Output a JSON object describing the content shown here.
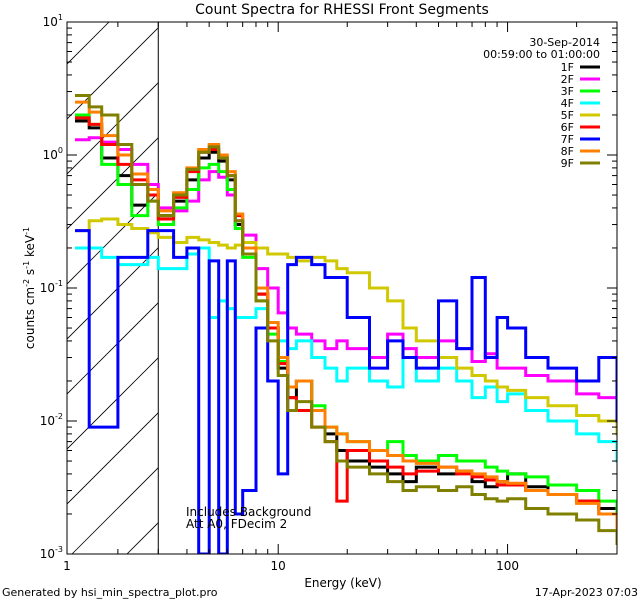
{
  "chart_data": {
    "type": "line",
    "title": "Count Spectra for RHESSI Front Segments",
    "date": "30-Sep-2014",
    "time_range": "00:59:00 to 01:00:00",
    "xlabel": "Energy (keV)",
    "ylabel_parts": [
      "counts cm",
      "-2",
      " s",
      "-1",
      " keV",
      "-1"
    ],
    "x_scale": "log",
    "y_scale": "log",
    "xlim": [
      1.2,
      300
    ],
    "ylim": [
      0.001,
      10
    ],
    "x_ticks": [
      {
        "v": 1,
        "label": "1"
      },
      {
        "v": 10,
        "label": "10"
      },
      {
        "v": 100,
        "label": "100"
      }
    ],
    "y_ticks": [
      {
        "v": 0.001,
        "base": "10",
        "exp": "-3"
      },
      {
        "v": 0.01,
        "base": "10",
        "exp": "-2"
      },
      {
        "v": 0.1,
        "base": "10",
        "exp": "-1"
      },
      {
        "v": 1,
        "base": "10",
        "exp": "0"
      },
      {
        "v": 10,
        "base": "10",
        "exp": "1"
      }
    ],
    "hatched_region": [
      1.2,
      3
    ],
    "notes": [
      "Includes Background",
      "Att A0, FDecim 2"
    ],
    "footer_left": "Generated by hsi_min_spectra_plot.pro",
    "footer_right": "17-Apr-2023 07:03",
    "series": [
      {
        "name": "1F",
        "color": "#000000",
        "x": [
          1.3,
          1.5,
          1.7,
          2.0,
          2.3,
          2.7,
          3.0,
          3.5,
          4.0,
          4.5,
          5.0,
          5.5,
          6.0,
          6.5,
          7,
          8,
          9,
          10,
          11,
          12,
          14,
          16,
          18,
          20,
          25,
          30,
          35,
          40,
          50,
          60,
          70,
          80,
          90,
          100,
          120,
          150,
          200,
          250,
          300
        ],
        "y": [
          1.8,
          1.6,
          0.95,
          0.7,
          0.42,
          0.5,
          0.35,
          0.45,
          0.65,
          0.95,
          1.05,
          0.9,
          0.65,
          0.3,
          0.18,
          0.09,
          0.05,
          0.025,
          0.015,
          0.02,
          0.012,
          0.008,
          0.006,
          0.005,
          0.0045,
          0.004,
          0.0035,
          0.0045,
          0.004,
          0.0042,
          0.0035,
          0.0032,
          0.0035,
          0.004,
          0.0032,
          0.0028,
          0.0025,
          0.0022,
          0.0015
        ]
      },
      {
        "name": "2F",
        "color": "#ff00ff",
        "x": [
          1.3,
          1.5,
          1.7,
          2.0,
          2.3,
          2.7,
          3.0,
          3.5,
          4.0,
          4.5,
          5.0,
          5.5,
          6.0,
          6.5,
          7,
          8,
          9,
          10,
          11,
          12,
          14,
          16,
          18,
          20,
          25,
          30,
          35,
          40,
          50,
          60,
          70,
          80,
          90,
          100,
          120,
          150,
          200,
          250,
          300
        ],
        "y": [
          1.3,
          1.35,
          1.25,
          1.1,
          0.85,
          0.6,
          0.4,
          0.38,
          0.45,
          0.65,
          0.75,
          0.68,
          0.5,
          0.32,
          0.25,
          0.14,
          0.1,
          0.065,
          0.05,
          0.045,
          0.04,
          0.035,
          0.04,
          0.035,
          0.03,
          0.045,
          0.035,
          0.03,
          0.04,
          0.035,
          0.028,
          0.032,
          0.025,
          0.025,
          0.022,
          0.02,
          0.016,
          0.015,
          0.012
        ]
      },
      {
        "name": "3F",
        "color": "#00ff00",
        "x": [
          1.3,
          1.5,
          1.7,
          2.0,
          2.3,
          2.7,
          3.0,
          3.5,
          4.0,
          4.5,
          5.0,
          5.5,
          6.0,
          6.5,
          7,
          8,
          9,
          10,
          11,
          12,
          14,
          16,
          18,
          20,
          25,
          30,
          35,
          40,
          50,
          60,
          70,
          80,
          90,
          100,
          120,
          150,
          200,
          250,
          300
        ],
        "y": [
          2.0,
          1.7,
          0.85,
          0.6,
          0.35,
          0.45,
          0.3,
          0.4,
          0.55,
          0.8,
          0.85,
          0.75,
          0.55,
          0.28,
          0.17,
          0.08,
          0.045,
          0.028,
          0.018,
          0.02,
          0.013,
          0.009,
          0.008,
          0.007,
          0.006,
          0.007,
          0.0055,
          0.005,
          0.0055,
          0.005,
          0.005,
          0.0045,
          0.0042,
          0.004,
          0.0038,
          0.0033,
          0.003,
          0.0025,
          0.0018
        ]
      },
      {
        "name": "4F",
        "color": "#00ffff",
        "x": [
          1.3,
          1.5,
          1.7,
          2.0,
          2.3,
          2.7,
          3.0,
          3.5,
          4.0,
          4.5,
          5.0,
          5.5,
          6.0,
          6.5,
          7,
          8,
          9,
          10,
          11,
          12,
          14,
          16,
          18,
          20,
          25,
          30,
          35,
          40,
          50,
          60,
          70,
          80,
          90,
          100,
          120,
          150,
          200,
          250,
          300
        ],
        "y": [
          0.2,
          0.2,
          0.17,
          0.15,
          0.15,
          0.17,
          0.14,
          0.14,
          0.18,
          0.2,
          0.06,
          0.08,
          0.07,
          0.06,
          0.06,
          0.07,
          0.05,
          0.04,
          0.035,
          0.04,
          0.03,
          0.025,
          0.02,
          0.025,
          0.02,
          0.018,
          0.03,
          0.02,
          0.025,
          0.02,
          0.015,
          0.018,
          0.014,
          0.016,
          0.012,
          0.01,
          0.008,
          0.007,
          0.005
        ]
      },
      {
        "name": "5F",
        "color": "#d0c800",
        "x": [
          1.3,
          1.5,
          1.7,
          2.0,
          2.3,
          2.7,
          3.0,
          3.5,
          4.0,
          4.5,
          5.0,
          5.5,
          6.0,
          6.5,
          7,
          8,
          9,
          10,
          11,
          12,
          14,
          16,
          18,
          20,
          25,
          30,
          35,
          40,
          50,
          60,
          70,
          80,
          90,
          100,
          120,
          150,
          200,
          250,
          300
        ],
        "y": [
          0.27,
          0.32,
          0.33,
          0.3,
          0.28,
          0.26,
          0.24,
          0.22,
          0.24,
          0.23,
          0.22,
          0.21,
          0.2,
          0.21,
          0.22,
          0.2,
          0.18,
          0.18,
          0.17,
          0.16,
          0.17,
          0.16,
          0.14,
          0.13,
          0.1,
          0.08,
          0.05,
          0.04,
          0.03,
          0.025,
          0.022,
          0.02,
          0.018,
          0.017,
          0.015,
          0.013,
          0.011,
          0.01,
          0.008
        ]
      },
      {
        "name": "6F",
        "color": "#ff0000",
        "x": [
          1.3,
          1.5,
          1.7,
          2.0,
          2.3,
          2.7,
          3.0,
          3.5,
          4.0,
          4.5,
          5.0,
          5.5,
          6.0,
          6.5,
          7,
          8,
          9,
          10,
          11,
          12,
          14,
          16,
          18,
          20,
          25,
          30,
          35,
          40,
          50,
          60,
          70,
          80,
          90,
          100,
          120,
          150,
          200,
          250,
          300
        ],
        "y": [
          1.9,
          1.7,
          1.2,
          0.85,
          0.65,
          0.5,
          0.33,
          0.48,
          0.75,
          1.05,
          1.1,
          0.95,
          0.7,
          0.35,
          0.2,
          0.09,
          0.05,
          0.027,
          0.015,
          0.012,
          0.009,
          0.007,
          0.0025,
          0.006,
          0.005,
          0.0045,
          0.004,
          0.0042,
          0.0045,
          0.004,
          0.0038,
          0.0036,
          0.0033,
          0.0033,
          0.003,
          0.0028,
          0.0025,
          0.002,
          0.0015
        ]
      },
      {
        "name": "7F",
        "color": "#0000ff",
        "x": [
          1.3,
          1.5,
          1.7,
          2.0,
          2.3,
          2.7,
          3.0,
          3.5,
          4.0,
          4.5,
          5.0,
          5.5,
          6.0,
          6.5,
          7,
          8,
          9,
          10,
          11,
          12,
          14,
          16,
          18,
          20,
          25,
          30,
          35,
          40,
          50,
          60,
          70,
          80,
          90,
          100,
          120,
          150,
          200,
          250,
          300
        ],
        "y": [
          0.27,
          0.009,
          0.009,
          0.17,
          0.17,
          0.27,
          0.27,
          0.17,
          0.2,
          0.001,
          0.16,
          0.001,
          0.16,
          0.002,
          0.003,
          0.05,
          0.02,
          0.004,
          0.15,
          0.17,
          0.15,
          0.12,
          0.12,
          0.06,
          0.025,
          0.04,
          0.03,
          0.025,
          0.08,
          0.035,
          0.12,
          0.03,
          0.06,
          0.05,
          0.03,
          0.025,
          0.02,
          0.03,
          0.01
        ]
      },
      {
        "name": "8F",
        "color": "#ff8000",
        "x": [
          1.3,
          1.5,
          1.7,
          2.0,
          2.3,
          2.7,
          3.0,
          3.5,
          4.0,
          4.5,
          5.0,
          5.5,
          6.0,
          6.5,
          7,
          8,
          9,
          10,
          11,
          12,
          14,
          16,
          18,
          20,
          25,
          30,
          35,
          40,
          50,
          60,
          70,
          80,
          90,
          100,
          120,
          150,
          200,
          250,
          300
        ],
        "y": [
          2.5,
          2.1,
          1.4,
          1.0,
          0.72,
          0.55,
          0.38,
          0.52,
          0.8,
          1.1,
          1.2,
          1.0,
          0.75,
          0.36,
          0.2,
          0.1,
          0.055,
          0.03,
          0.018,
          0.02,
          0.012,
          0.009,
          0.008,
          0.007,
          0.006,
          0.0055,
          0.005,
          0.0048,
          0.0045,
          0.0042,
          0.004,
          0.0038,
          0.0035,
          0.0034,
          0.003,
          0.0028,
          0.0024,
          0.002,
          0.0015
        ]
      },
      {
        "name": "9F",
        "color": "#808000",
        "x": [
          1.3,
          1.5,
          1.7,
          2.0,
          2.3,
          2.7,
          3.0,
          3.5,
          4.0,
          4.5,
          5.0,
          5.5,
          6.0,
          6.5,
          7,
          8,
          9,
          10,
          11,
          12,
          14,
          16,
          18,
          20,
          25,
          30,
          35,
          40,
          50,
          60,
          70,
          80,
          90,
          100,
          120,
          150,
          200,
          250,
          300
        ],
        "y": [
          2.8,
          2.3,
          2.0,
          1.2,
          0.6,
          0.45,
          0.35,
          0.5,
          0.78,
          1.05,
          1.15,
          0.95,
          0.7,
          0.32,
          0.18,
          0.08,
          0.04,
          0.022,
          0.012,
          0.014,
          0.009,
          0.007,
          0.005,
          0.0045,
          0.004,
          0.0035,
          0.003,
          0.0032,
          0.003,
          0.0032,
          0.0028,
          0.0026,
          0.0025,
          0.0026,
          0.0022,
          0.002,
          0.0018,
          0.0015,
          0.0012
        ]
      }
    ]
  }
}
